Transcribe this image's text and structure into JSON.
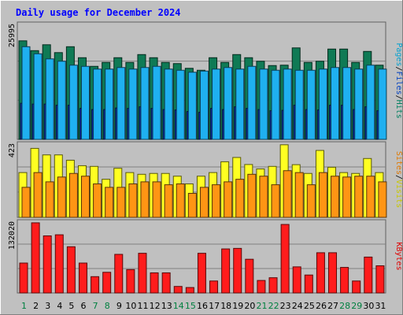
{
  "chart_data": {
    "type": "bar",
    "title": "Daily usage for December 2024",
    "categories": [
      "1",
      "2",
      "3",
      "4",
      "5",
      "6",
      "7",
      "8",
      "9",
      "10",
      "11",
      "12",
      "13",
      "14",
      "15",
      "16",
      "17",
      "18",
      "19",
      "20",
      "21",
      "22",
      "23",
      "24",
      "25",
      "26",
      "27",
      "28",
      "29",
      "30",
      "31"
    ],
    "weekend_days": [
      "1",
      "7",
      "8",
      "14",
      "15",
      "21",
      "22",
      "28",
      "29"
    ],
    "panels": [
      {
        "id": "hits",
        "max_label": "25995",
        "ymax": 25995,
        "legend": [
          {
            "text": "Pages",
            "color": "#00a0d0"
          },
          {
            "text": "/",
            "color": "#000000"
          },
          {
            "text": "Files",
            "color": "#0040c0"
          },
          {
            "text": "/",
            "color": "#000000"
          },
          {
            "text": "Hits",
            "color": "#008060"
          }
        ],
        "series": [
          {
            "name": "Hits",
            "color": "#0f7a55",
            "values": [
              25100,
              22600,
              24100,
              22100,
              23600,
              20800,
              18600,
              19600,
              20800,
              19600,
              21600,
              20800,
              19600,
              19300,
              18100,
              17600,
              20800,
              19600,
              21600,
              20800,
              19900,
              18800,
              18900,
              23300,
              19600,
              19900,
              23000,
              23000,
              19600,
              22400,
              18900
            ]
          },
          {
            "name": "Files",
            "color": "#0a2ea8",
            "values": [
              9200,
              9000,
              9000,
              8700,
              8700,
              7900,
              7600,
              7600,
              8000,
              7900,
              8300,
              7900,
              7600,
              7500,
              7100,
              6900,
              7900,
              7600,
              8300,
              7900,
              7600,
              7300,
              7400,
              8700,
              7600,
              7500,
              8700,
              8700,
              7600,
              8300,
              7300
            ]
          },
          {
            "name": "Pages",
            "color": "#1fb0f0",
            "values": [
              23600,
              21800,
              20500,
              19900,
              18900,
              18600,
              17900,
              17900,
              18300,
              17900,
              18300,
              18600,
              17900,
              17600,
              17100,
              17400,
              17900,
              18300,
              17900,
              18600,
              17900,
              17600,
              17900,
              17600,
              17600,
              17900,
              18300,
              18300,
              17900,
              18900,
              17900
            ]
          }
        ]
      },
      {
        "id": "visits",
        "max_label": "423",
        "ymax": 423,
        "legend": [
          {
            "text": "Sites",
            "color": "#e07800"
          },
          {
            "text": "/",
            "color": "#000000"
          },
          {
            "text": "Visits",
            "color": "#c8c800"
          }
        ],
        "series": [
          {
            "name": "Visits",
            "color": "#ffff22",
            "values": [
              261,
              402,
              364,
              364,
              333,
              301,
              297,
              222,
              286,
              261,
              251,
              256,
              256,
              240,
              195,
              240,
              261,
              324,
              349,
              308,
              282,
              297,
              423,
              307,
              256,
              390,
              292,
              261,
              256,
              343,
              261
            ]
          },
          {
            "name": "Sites",
            "color": "#ff9514",
            "values": [
              175,
              261,
              207,
              235,
              256,
              240,
              195,
              175,
              175,
              195,
              207,
              207,
              190,
              195,
              140,
              175,
              190,
              207,
              222,
              251,
              240,
              190,
              272,
              261,
              190,
              261,
              240,
              235,
              240,
              240,
              207
            ]
          }
        ]
      },
      {
        "id": "kbytes",
        "max_label": "132020",
        "ymax": 132020,
        "legend": [
          {
            "text": "KBytes",
            "color": "#e00000"
          }
        ],
        "series": [
          {
            "name": "KBytes",
            "color": "#ff1c1c",
            "values": [
              55000,
              129000,
              105000,
              107000,
              85000,
              55000,
              30000,
              38000,
              71000,
              43000,
              73000,
              37000,
              37000,
              12000,
              10000,
              73000,
              22000,
              81000,
              82000,
              62000,
              23000,
              28000,
              126000,
              48000,
              33000,
              74000,
              74000,
              47000,
              22000,
              66000,
              50000
            ]
          }
        ]
      }
    ],
    "colors": {
      "background": "#c0c0c0",
      "title": "#0000ff",
      "weekday_label": "#000000",
      "weekend_label": "#008040"
    }
  }
}
